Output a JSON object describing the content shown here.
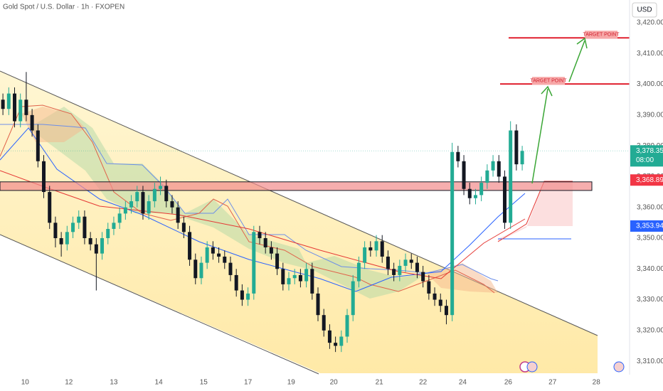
{
  "chart_data": {
    "type": "candlestick",
    "title": "Gold Spot / U.S. Dollar · 1h · FXOPEN",
    "currency": "USD",
    "up_color": "#22ab94",
    "down_color": "#131722",
    "candles": [
      [
        3395,
        3397,
        3390,
        3392
      ],
      [
        3392,
        3399,
        3390,
        3397
      ],
      [
        3397,
        3399,
        3386,
        3388
      ],
      [
        3388,
        3397,
        3386,
        3395
      ],
      [
        3395,
        3404,
        3388,
        3390
      ],
      [
        3390,
        3392,
        3383,
        3385
      ],
      [
        3385,
        3387,
        3373,
        3375
      ],
      [
        3375,
        3377,
        3363,
        3365
      ],
      [
        3365,
        3367,
        3353,
        3355
      ],
      [
        3355,
        3357,
        3347,
        3350
      ],
      [
        3350,
        3352,
        3344,
        3348
      ],
      [
        3348,
        3354,
        3346,
        3352
      ],
      [
        3352,
        3357,
        3350,
        3355
      ],
      [
        3355,
        3359,
        3353,
        3357
      ],
      [
        3357,
        3359,
        3348,
        3350
      ],
      [
        3350,
        3352,
        3346,
        3348
      ],
      [
        3348,
        3350,
        3333,
        3345
      ],
      [
        3345,
        3352,
        3343,
        3350
      ],
      [
        3350,
        3355,
        3348,
        3353
      ],
      [
        3353,
        3357,
        3351,
        3355
      ],
      [
        3355,
        3360,
        3353,
        3358
      ],
      [
        3358,
        3362,
        3356,
        3360
      ],
      [
        3360,
        3364,
        3358,
        3362
      ],
      [
        3362,
        3367,
        3360,
        3365
      ],
      [
        3365,
        3367,
        3356,
        3358
      ],
      [
        3358,
        3364,
        3356,
        3362
      ],
      [
        3362,
        3368,
        3360,
        3366
      ],
      [
        3366,
        3370,
        3364,
        3367
      ],
      [
        3367,
        3369,
        3360,
        3362
      ],
      [
        3362,
        3364,
        3358,
        3360
      ],
      [
        3360,
        3362,
        3353,
        3355
      ],
      [
        3355,
        3357,
        3350,
        3352
      ],
      [
        3352,
        3354,
        3341,
        3343
      ],
      [
        3343,
        3345,
        3335,
        3337
      ],
      [
        3337,
        3344,
        3335,
        3342
      ],
      [
        3342,
        3349,
        3340,
        3347
      ],
      [
        3347,
        3349,
        3343,
        3345
      ],
      [
        3345,
        3347,
        3342,
        3344
      ],
      [
        3344,
        3346,
        3340,
        3342
      ],
      [
        3342,
        3344,
        3336,
        3338
      ],
      [
        3338,
        3340,
        3331,
        3333
      ],
      [
        3333,
        3335,
        3328,
        3330
      ],
      [
        3330,
        3334,
        3328,
        3332
      ],
      [
        3332,
        3354,
        3330,
        3352
      ],
      [
        3352,
        3354,
        3348,
        3350
      ],
      [
        3350,
        3352,
        3345,
        3347
      ],
      [
        3347,
        3349,
        3343,
        3345
      ],
      [
        3345,
        3347,
        3338,
        3340
      ],
      [
        3340,
        3342,
        3333,
        3335
      ],
      [
        3335,
        3339,
        3333,
        3337
      ],
      [
        3337,
        3340,
        3335,
        3338
      ],
      [
        3338,
        3340,
        3334,
        3336
      ],
      [
        3336,
        3342,
        3334,
        3340
      ],
      [
        3340,
        3342,
        3330,
        3332
      ],
      [
        3332,
        3334,
        3323,
        3325
      ],
      [
        3325,
        3327,
        3318,
        3320
      ],
      [
        3320,
        3322,
        3314,
        3316
      ],
      [
        3316,
        3318,
        3313,
        3315
      ],
      [
        3315,
        3320,
        3313,
        3318
      ],
      [
        3318,
        3327,
        3316,
        3325
      ],
      [
        3325,
        3338,
        3323,
        3336
      ],
      [
        3336,
        3344,
        3334,
        3342
      ],
      [
        3342,
        3349,
        3340,
        3347
      ],
      [
        3347,
        3349,
        3344,
        3346
      ],
      [
        3346,
        3351,
        3344,
        3349
      ],
      [
        3349,
        3351,
        3342,
        3344
      ],
      [
        3344,
        3346,
        3338,
        3340
      ],
      [
        3340,
        3342,
        3336,
        3338
      ],
      [
        3338,
        3343,
        3336,
        3341
      ],
      [
        3341,
        3345,
        3339,
        3343
      ],
      [
        3343,
        3345,
        3340,
        3342
      ],
      [
        3342,
        3344,
        3337,
        3339
      ],
      [
        3339,
        3341,
        3334,
        3336
      ],
      [
        3336,
        3338,
        3330,
        3332
      ],
      [
        3332,
        3334,
        3328,
        3330
      ],
      [
        3330,
        3332,
        3326,
        3328
      ],
      [
        3328,
        3330,
        3322,
        3325
      ],
      [
        3325,
        3381,
        3323,
        3378
      ],
      [
        3378,
        3380,
        3373,
        3375
      ],
      [
        3375,
        3377,
        3364,
        3366
      ],
      [
        3366,
        3368,
        3361,
        3363
      ],
      [
        3363,
        3366,
        3361,
        3364
      ],
      [
        3364,
        3370,
        3362,
        3368
      ],
      [
        3368,
        3374,
        3366,
        3372
      ],
      [
        3372,
        3377,
        3370,
        3375
      ],
      [
        3375,
        3377,
        3368,
        3370
      ],
      [
        3370,
        3372,
        3353,
        3355
      ],
      [
        3355,
        3388,
        3353,
        3385
      ],
      [
        3385,
        3387,
        3372,
        3374
      ],
      [
        3374,
        3380,
        3372,
        3378.35
      ]
    ],
    "xlim": [
      -0.5,
      107.4
    ],
    "xticks": [
      {
        "value": 3.8,
        "label": "10"
      },
      {
        "value": 11.3,
        "label": "12"
      },
      {
        "value": 19,
        "label": "13"
      },
      {
        "value": 26.7,
        "label": "14"
      },
      {
        "value": 34.4,
        "label": "15"
      },
      {
        "value": 42,
        "label": "17"
      },
      {
        "value": 49.4,
        "label": "19"
      },
      {
        "value": 56.7,
        "label": "20"
      },
      {
        "value": 64.5,
        "label": "21"
      },
      {
        "value": 72,
        "label": "22"
      },
      {
        "value": 78.8,
        "label": "24"
      },
      {
        "value": 86.6,
        "label": "26"
      },
      {
        "value": 94.2,
        "label": "27"
      },
      {
        "value": 101.7,
        "label": "28"
      }
    ],
    "ylim": [
      3306.1,
      3427.4
    ],
    "yticks": [
      {
        "value": 3310,
        "label": "3,310.00"
      },
      {
        "value": 3320,
        "label": "3,320.00"
      },
      {
        "value": 3330,
        "label": "3,330.00"
      },
      {
        "value": 3340,
        "label": "3,340.00"
      },
      {
        "value": 3350,
        "label": "3,350.00"
      },
      {
        "value": 3360,
        "label": "3,360.00"
      },
      {
        "value": 3370,
        "label": "3,370.00"
      },
      {
        "value": 3380,
        "label": "3,380.00"
      },
      {
        "value": 3390,
        "label": "3,390.00"
      },
      {
        "value": 3400,
        "label": "3,400.00"
      },
      {
        "value": 3410,
        "label": "3,410.00"
      },
      {
        "value": 3420,
        "label": "3,420.00"
      }
    ],
    "last_price": {
      "value": 3378.35,
      "label": "3,378.35",
      "countdown": "08:00",
      "color": "#22ab94"
    },
    "levels": [
      {
        "value": 3368.89,
        "label": "3,368.89",
        "color": "#f23645"
      },
      {
        "value": 3353.94,
        "label": "3,353.94",
        "color": "#2962ff"
      }
    ],
    "zone": [
      3365.5,
      3368.3
    ],
    "targets": [
      {
        "value": 3415.1,
        "label": "TARGET POINT"
      },
      {
        "value": 3400.1,
        "label": "TARGET POINT"
      }
    ]
  }
}
